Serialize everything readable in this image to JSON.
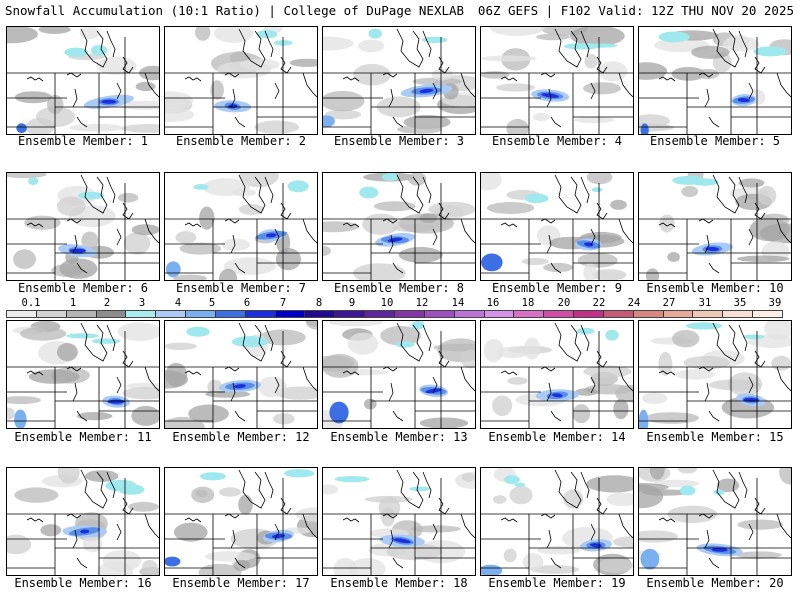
{
  "header": {
    "title_left": "Snowfall Accumulation (10:1 Ratio) | College of DuPage NEXLAB",
    "title_right": "06Z GEFS | F102 Valid: 12Z THU NOV 20 2025"
  },
  "colorbar": {
    "labels": [
      "0.1",
      "1",
      "2",
      "3",
      "4",
      "5",
      "6",
      "7",
      "8",
      "9",
      "10",
      "12",
      "14",
      "16",
      "18",
      "20",
      "22",
      "24",
      "27",
      "31",
      "35",
      "39"
    ],
    "colors": [
      "#ececec",
      "#d2d2d2",
      "#b4b4b4",
      "#8c8c8c",
      "#a8eef0",
      "#aacbf5",
      "#7ab0ef",
      "#3d6fe4",
      "#1b2fe0",
      "#0000c8",
      "#1f0a90",
      "#3d1596",
      "#5f259e",
      "#8436a8",
      "#9d4fc0",
      "#ba74d8",
      "#d592e6",
      "#d870c8",
      "#d24ea8",
      "#c33088",
      "#c85a78",
      "#d88880",
      "#e6aa98",
      "#f0c8b8",
      "#f8e0d4",
      "#fdf0e6"
    ]
  },
  "panels": [
    {
      "label": "Ensemble Member: 1"
    },
    {
      "label": "Ensemble Member: 2"
    },
    {
      "label": "Ensemble Member: 3"
    },
    {
      "label": "Ensemble Member: 4"
    },
    {
      "label": "Ensemble Member: 5"
    },
    {
      "label": "Ensemble Member: 6"
    },
    {
      "label": "Ensemble Member: 7"
    },
    {
      "label": "Ensemble Member: 8"
    },
    {
      "label": "Ensemble Member: 9"
    },
    {
      "label": "Ensemble Member: 10"
    },
    {
      "label": "Ensemble Member: 11"
    },
    {
      "label": "Ensemble Member: 12"
    },
    {
      "label": "Ensemble Member: 13"
    },
    {
      "label": "Ensemble Member: 14"
    },
    {
      "label": "Ensemble Member: 15"
    },
    {
      "label": "Ensemble Member: 16"
    },
    {
      "label": "Ensemble Member: 17"
    },
    {
      "label": "Ensemble Member: 18"
    },
    {
      "label": "Ensemble Member: 19"
    },
    {
      "label": "Ensemble Member: 20"
    }
  ]
}
